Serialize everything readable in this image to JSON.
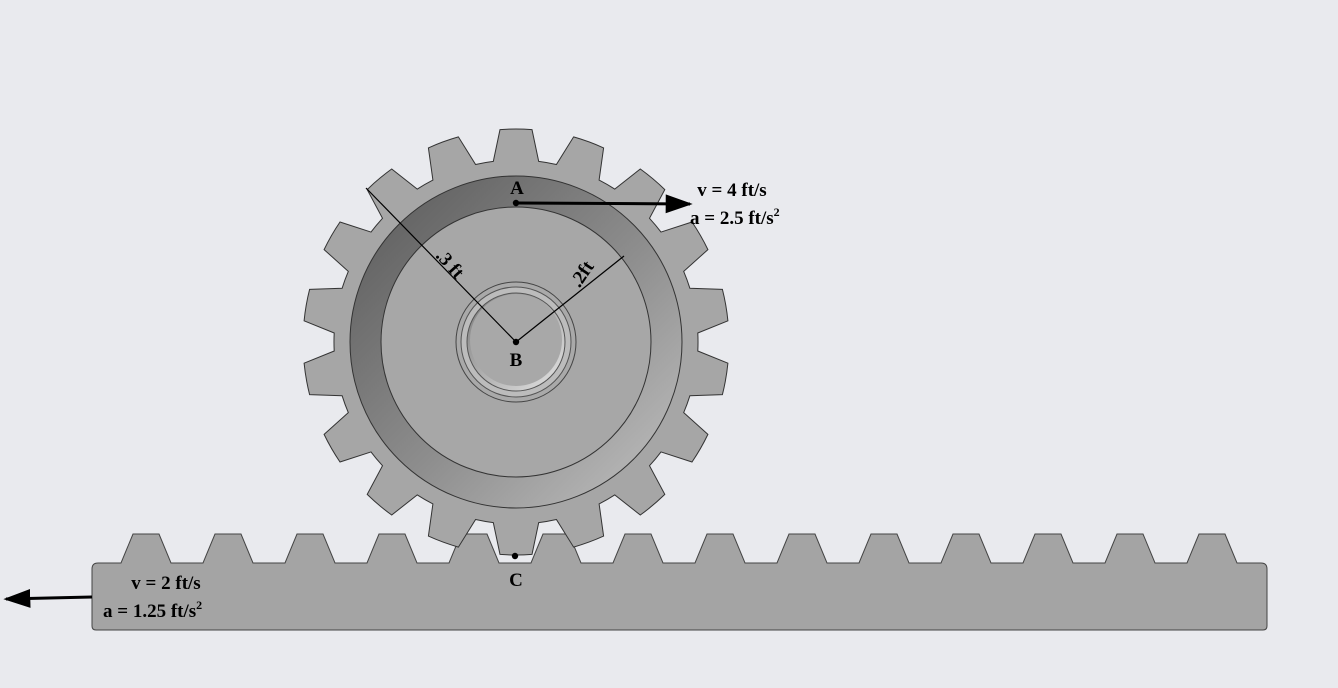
{
  "points": {
    "a": "A",
    "b": "B",
    "c": "C"
  },
  "dimensions": {
    "outer_radius": ".3 ft",
    "inner_radius": ".2ft"
  },
  "gear_top": {
    "velocity": "v = 4 ft/s",
    "accel_main": "a = 2.5 ft/s",
    "accel_exp": "2"
  },
  "rack": {
    "velocity": "v = 2 ft/s",
    "accel_main": "a = 1.25 ft/s",
    "accel_exp": "2"
  },
  "gear": {
    "teeth": 18
  },
  "colors": {
    "background": "#e9eaee",
    "body_gray": "#a6a6a6",
    "outline": "#333333",
    "arrow": "#000000"
  }
}
